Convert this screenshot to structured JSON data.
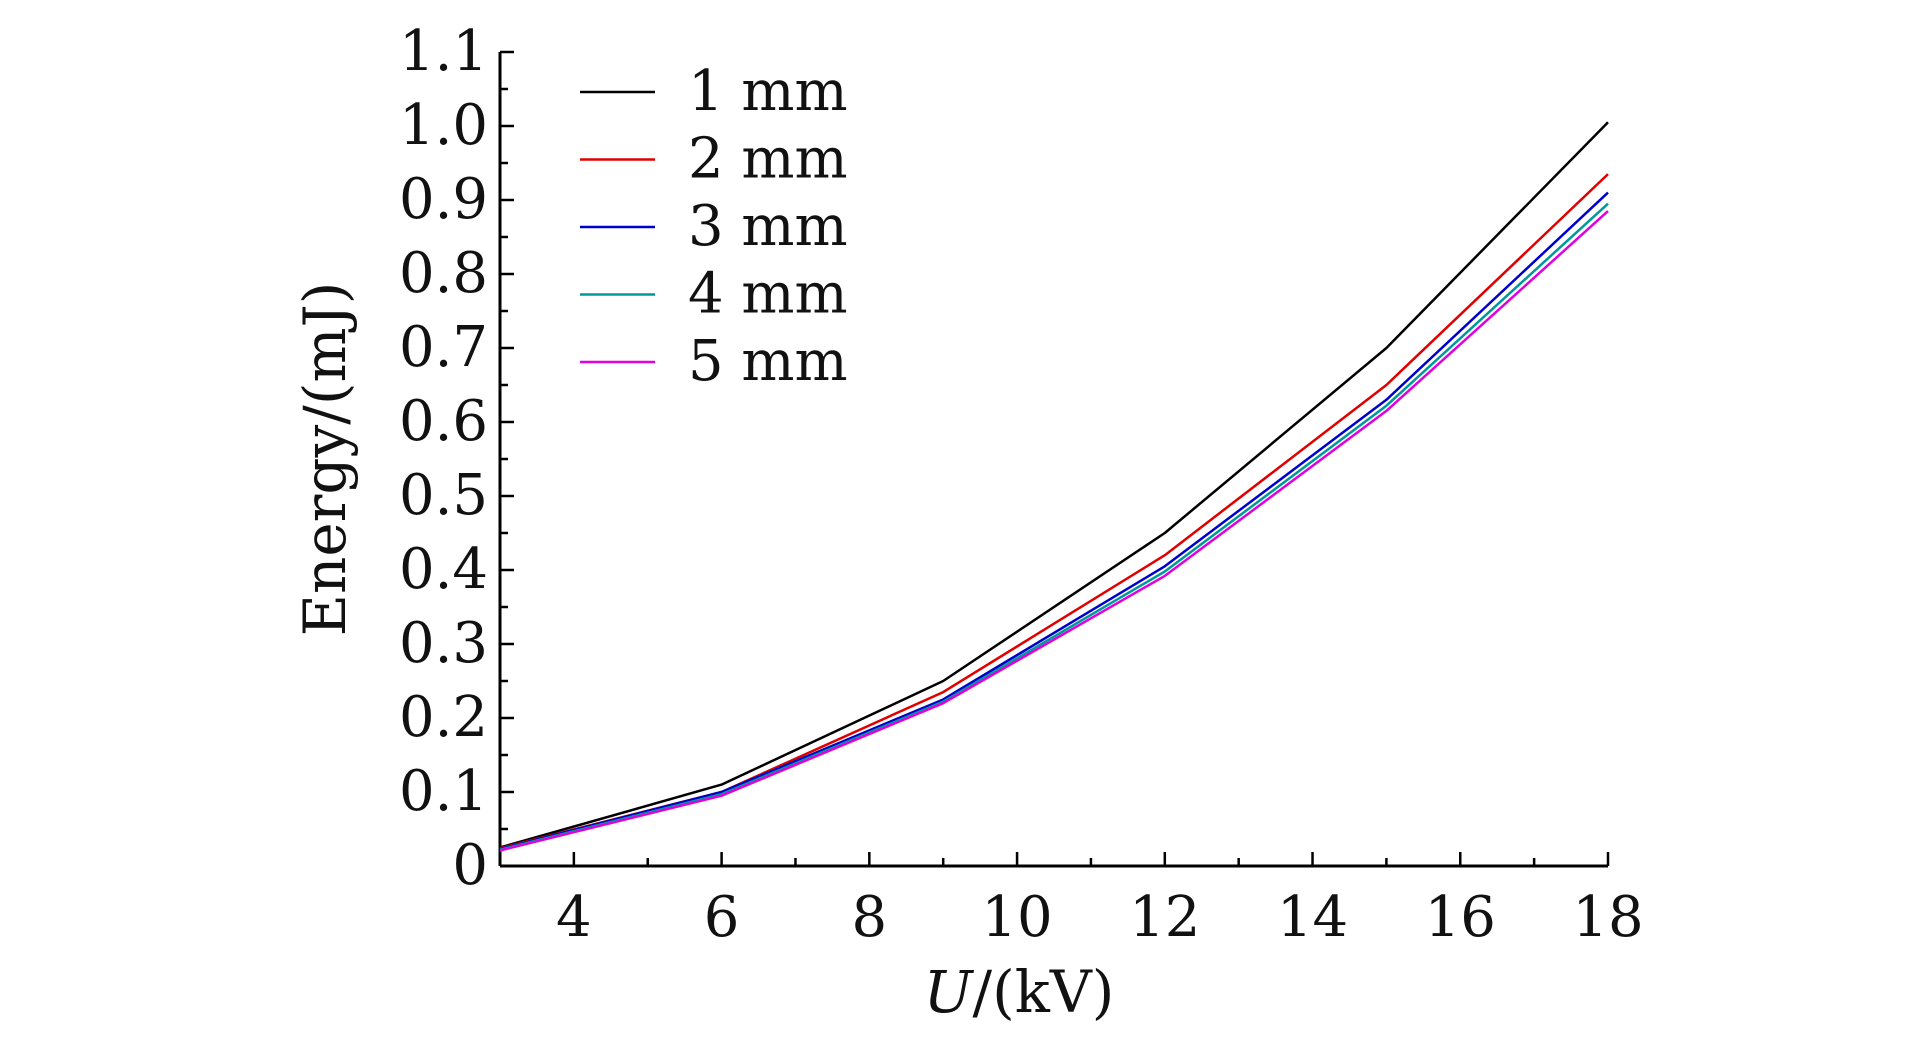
{
  "chart_data": {
    "type": "line",
    "title": "",
    "xlabel_italic": "U",
    "xlabel_rest": "/(kV)",
    "ylabel": "Energy/(mJ)",
    "xlim": [
      3,
      18
    ],
    "ylim": [
      0,
      1.1
    ],
    "xticks": [
      4,
      6,
      8,
      10,
      12,
      14,
      16,
      18
    ],
    "yticks": [
      0,
      0.1,
      0.2,
      0.3,
      0.4,
      0.5,
      0.6,
      0.7,
      0.8,
      0.9,
      1.0,
      1.1
    ],
    "ytick_labels": [
      "0",
      "0.1",
      "0.2",
      "0.3",
      "0.4",
      "0.5",
      "0.6",
      "0.7",
      "0.8",
      "0.9",
      "1.0",
      "1.1"
    ],
    "grid": false,
    "legend_position": "top-left",
    "x": [
      3,
      6,
      9,
      12,
      15,
      18
    ],
    "series": [
      {
        "name": "1 mm",
        "color": "#000000",
        "values": [
          0.025,
          0.11,
          0.25,
          0.45,
          0.7,
          1.005
        ]
      },
      {
        "name": "2 mm",
        "color": "#e00000",
        "values": [
          0.024,
          0.1,
          0.235,
          0.42,
          0.65,
          0.935
        ]
      },
      {
        "name": "3 mm",
        "color": "#0000cc",
        "values": [
          0.023,
          0.1,
          0.225,
          0.405,
          0.63,
          0.91
        ]
      },
      {
        "name": "4 mm",
        "color": "#009999",
        "values": [
          0.022,
          0.097,
          0.222,
          0.398,
          0.622,
          0.895
        ]
      },
      {
        "name": "5 mm",
        "color": "#e000e0",
        "values": [
          0.021,
          0.095,
          0.22,
          0.392,
          0.615,
          0.885
        ]
      }
    ]
  }
}
